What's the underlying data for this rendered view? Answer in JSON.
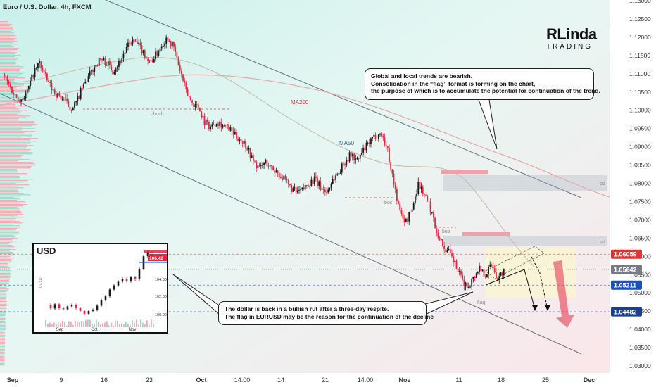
{
  "header": {
    "symbol_title": "Euro / U.S. Dollar, 4h, FXCM"
  },
  "logo": {
    "main": "RLinda",
    "sub": "TRADING"
  },
  "callouts": {
    "top_lines": [
      "Global and local trends are bearish.",
      "Consolidation in the “flag” format is forming on the chart,",
      "the purpose of which is to accumulate the potential for continuation of the trend."
    ],
    "bottom_lines": [
      "The dollar is back in a bullish rut after a three-day respite.",
      "The flag in EURUSD may be the reason for the continuation of the decline"
    ]
  },
  "inset": {
    "title": "USD",
    "price_badge": "106.42",
    "x_labels": [
      "Sep",
      "Oct",
      "Nov"
    ],
    "y_labels": [
      "104.00",
      "102.00",
      "100.00"
    ],
    "side_label": "DXY.D"
  },
  "colors": {
    "bull": "#26a69a",
    "bear": "#ef5350",
    "candle_dark": "#1a1a1a",
    "candle_red": "#e8243f",
    "price_red_badge": "#e03535",
    "price_blue_badge": "#2962ff",
    "price_gray_badge": "#787b86",
    "arrow": "#e8566a"
  },
  "chart_data": {
    "type": "candlestick",
    "title": "Euro / U.S. Dollar, 4h, FXCM",
    "ylim": [
      1.03,
      1.13
    ],
    "y_ticks": [
      "1.13000",
      "1.12500",
      "1.12000",
      "1.11500",
      "1.11000",
      "1.10500",
      "1.10000",
      "1.09500",
      "1.09000",
      "1.08500",
      "1.08000",
      "1.07500",
      "1.07000",
      "1.06500",
      "1.06000",
      "1.05500",
      "1.05000",
      "1.04500",
      "1.04000",
      "1.03500",
      "1.03000"
    ],
    "x_ticks": [
      "Sep",
      "9",
      "16",
      "23",
      "Oct",
      "14:00",
      "14",
      "21",
      "14:00",
      "Nov",
      "11",
      "18",
      "25",
      "Dec"
    ],
    "price_badges": [
      {
        "label": "1.06059",
        "value": 1.06059,
        "kind": "red"
      },
      {
        "label": "1.05642",
        "value": 1.05642,
        "kind": "gray"
      },
      {
        "label": "1.05211",
        "value": 1.05211,
        "kind": "blue"
      },
      {
        "label": "1.04482",
        "value": 1.04482,
        "kind": "navy"
      }
    ],
    "indicators": [
      {
        "name": "MA200",
        "value_at_label": 1.101
      },
      {
        "name": "MA50",
        "value_at_label": 1.0905
      }
    ],
    "annotations": [
      "choch",
      "bos",
      "bos",
      "flag",
      "pd",
      "pd"
    ],
    "path": [
      [
        0,
        1.11
      ],
      [
        1,
        1.107
      ],
      [
        2,
        1.104
      ],
      [
        3,
        1.103
      ],
      [
        4,
        1.105
      ],
      [
        5,
        1.11
      ],
      [
        6,
        1.113
      ],
      [
        7,
        1.109
      ],
      [
        8,
        1.106
      ],
      [
        9,
        1.104
      ],
      [
        10,
        1.103
      ],
      [
        11,
        1.1005
      ],
      [
        12,
        1.102
      ],
      [
        13,
        1.106
      ],
      [
        14,
        1.109
      ],
      [
        15,
        1.112
      ],
      [
        16,
        1.114
      ],
      [
        17,
        1.113
      ],
      [
        18,
        1.111
      ],
      [
        19,
        1.113
      ],
      [
        20,
        1.116
      ],
      [
        21,
        1.119
      ],
      [
        22,
        1.118
      ],
      [
        23,
        1.116
      ],
      [
        24,
        1.113
      ],
      [
        25,
        1.115
      ],
      [
        26,
        1.118
      ],
      [
        27,
        1.12
      ],
      [
        28,
        1.117
      ],
      [
        29,
        1.111
      ],
      [
        30,
        1.105
      ],
      [
        31,
        1.102
      ],
      [
        32,
        1.101
      ],
      [
        33,
        1.097
      ],
      [
        34,
        1.0955
      ],
      [
        35,
        1.097
      ],
      [
        36,
        1.096
      ],
      [
        37,
        1.095
      ],
      [
        38,
        1.093
      ],
      [
        39,
        1.092
      ],
      [
        40,
        1.09
      ],
      [
        41,
        1.086
      ],
      [
        42,
        1.084
      ],
      [
        43,
        1.086
      ],
      [
        44,
        1.084
      ],
      [
        45,
        1.083
      ],
      [
        46,
        1.081
      ],
      [
        47,
        1.079
      ],
      [
        48,
        1.0775
      ],
      [
        49,
        1.078
      ],
      [
        50,
        1.08
      ],
      [
        51,
        1.081
      ],
      [
        52,
        1.079
      ],
      [
        53,
        1.0775
      ],
      [
        54,
        1.081
      ],
      [
        55,
        1.083
      ],
      [
        56,
        1.086
      ],
      [
        57,
        1.088
      ],
      [
        58,
        1.086
      ],
      [
        59,
        1.089
      ],
      [
        60,
        1.091
      ],
      [
        61,
        1.093
      ],
      [
        62,
        1.0935
      ],
      [
        63,
        1.089
      ],
      [
        64,
        1.08
      ],
      [
        65,
        1.072
      ],
      [
        66,
        1.0695
      ],
      [
        67,
        1.073
      ],
      [
        68,
        1.08
      ],
      [
        69,
        1.077
      ],
      [
        70,
        1.073
      ],
      [
        71,
        1.067
      ],
      [
        72,
        1.063
      ],
      [
        73,
        1.061
      ],
      [
        74,
        1.058
      ],
      [
        75,
        1.054
      ],
      [
        76,
        1.0515
      ],
      [
        77,
        1.054
      ],
      [
        78,
        1.057
      ],
      [
        79,
        1.055
      ],
      [
        80,
        1.058
      ],
      [
        81,
        1.054
      ],
      [
        82,
        1.056
      ]
    ]
  }
}
